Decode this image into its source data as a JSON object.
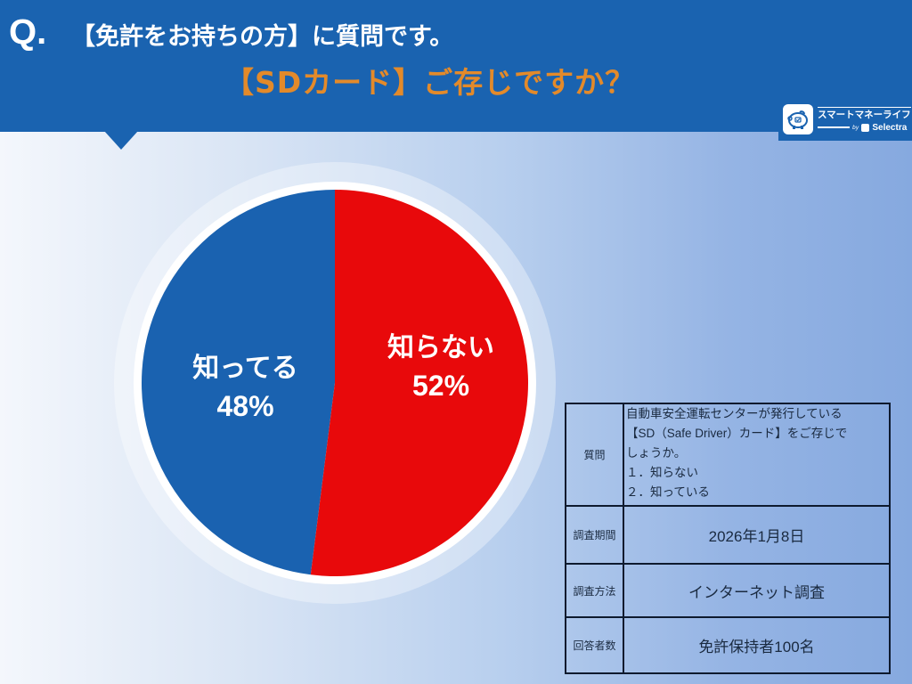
{
  "header": {
    "q_mark": "Q.",
    "title_line1": "【免許をお持ちの方】に質問です。",
    "title_line2": "【SDカード】ご存じですか？",
    "background_color": "#1a63b0",
    "accent_color": "#e38a2a"
  },
  "logo": {
    "icon": "piggy-bank-icon",
    "name": "スマートマネーライフ",
    "by": "by",
    "brand": "Selectra"
  },
  "chart_data": {
    "type": "pie",
    "title": "【SDカード】ご存じですか？",
    "categories": [
      "知らない",
      "知ってる"
    ],
    "values": [
      52,
      48
    ],
    "colors": [
      "#e8090b",
      "#1a62b0"
    ],
    "labels": [
      {
        "name": "知らない",
        "value_text": "52%"
      },
      {
        "name": "知ってる",
        "value_text": "48%"
      }
    ],
    "start_angle_deg": 0,
    "direction": "clockwise",
    "legend": "none"
  },
  "pie": {
    "slices": [
      {
        "label": "知らない",
        "percent_text": "52%"
      },
      {
        "label": "知ってる",
        "percent_text": "48%"
      }
    ]
  },
  "survey_table": {
    "rows": [
      {
        "label": "質問",
        "value_lines": [
          "自動車安全運転センターが発行している",
          "【SD（Safe Driver）カード】をご存じで",
          "しょうか。",
          "１．知らない",
          "２．知っている"
        ]
      },
      {
        "label": "調査期間",
        "value": "2026年1月8日"
      },
      {
        "label": "調査方法",
        "value": "インターネット調査"
      },
      {
        "label": "回答者数",
        "value": "免許保持者100名"
      }
    ]
  }
}
